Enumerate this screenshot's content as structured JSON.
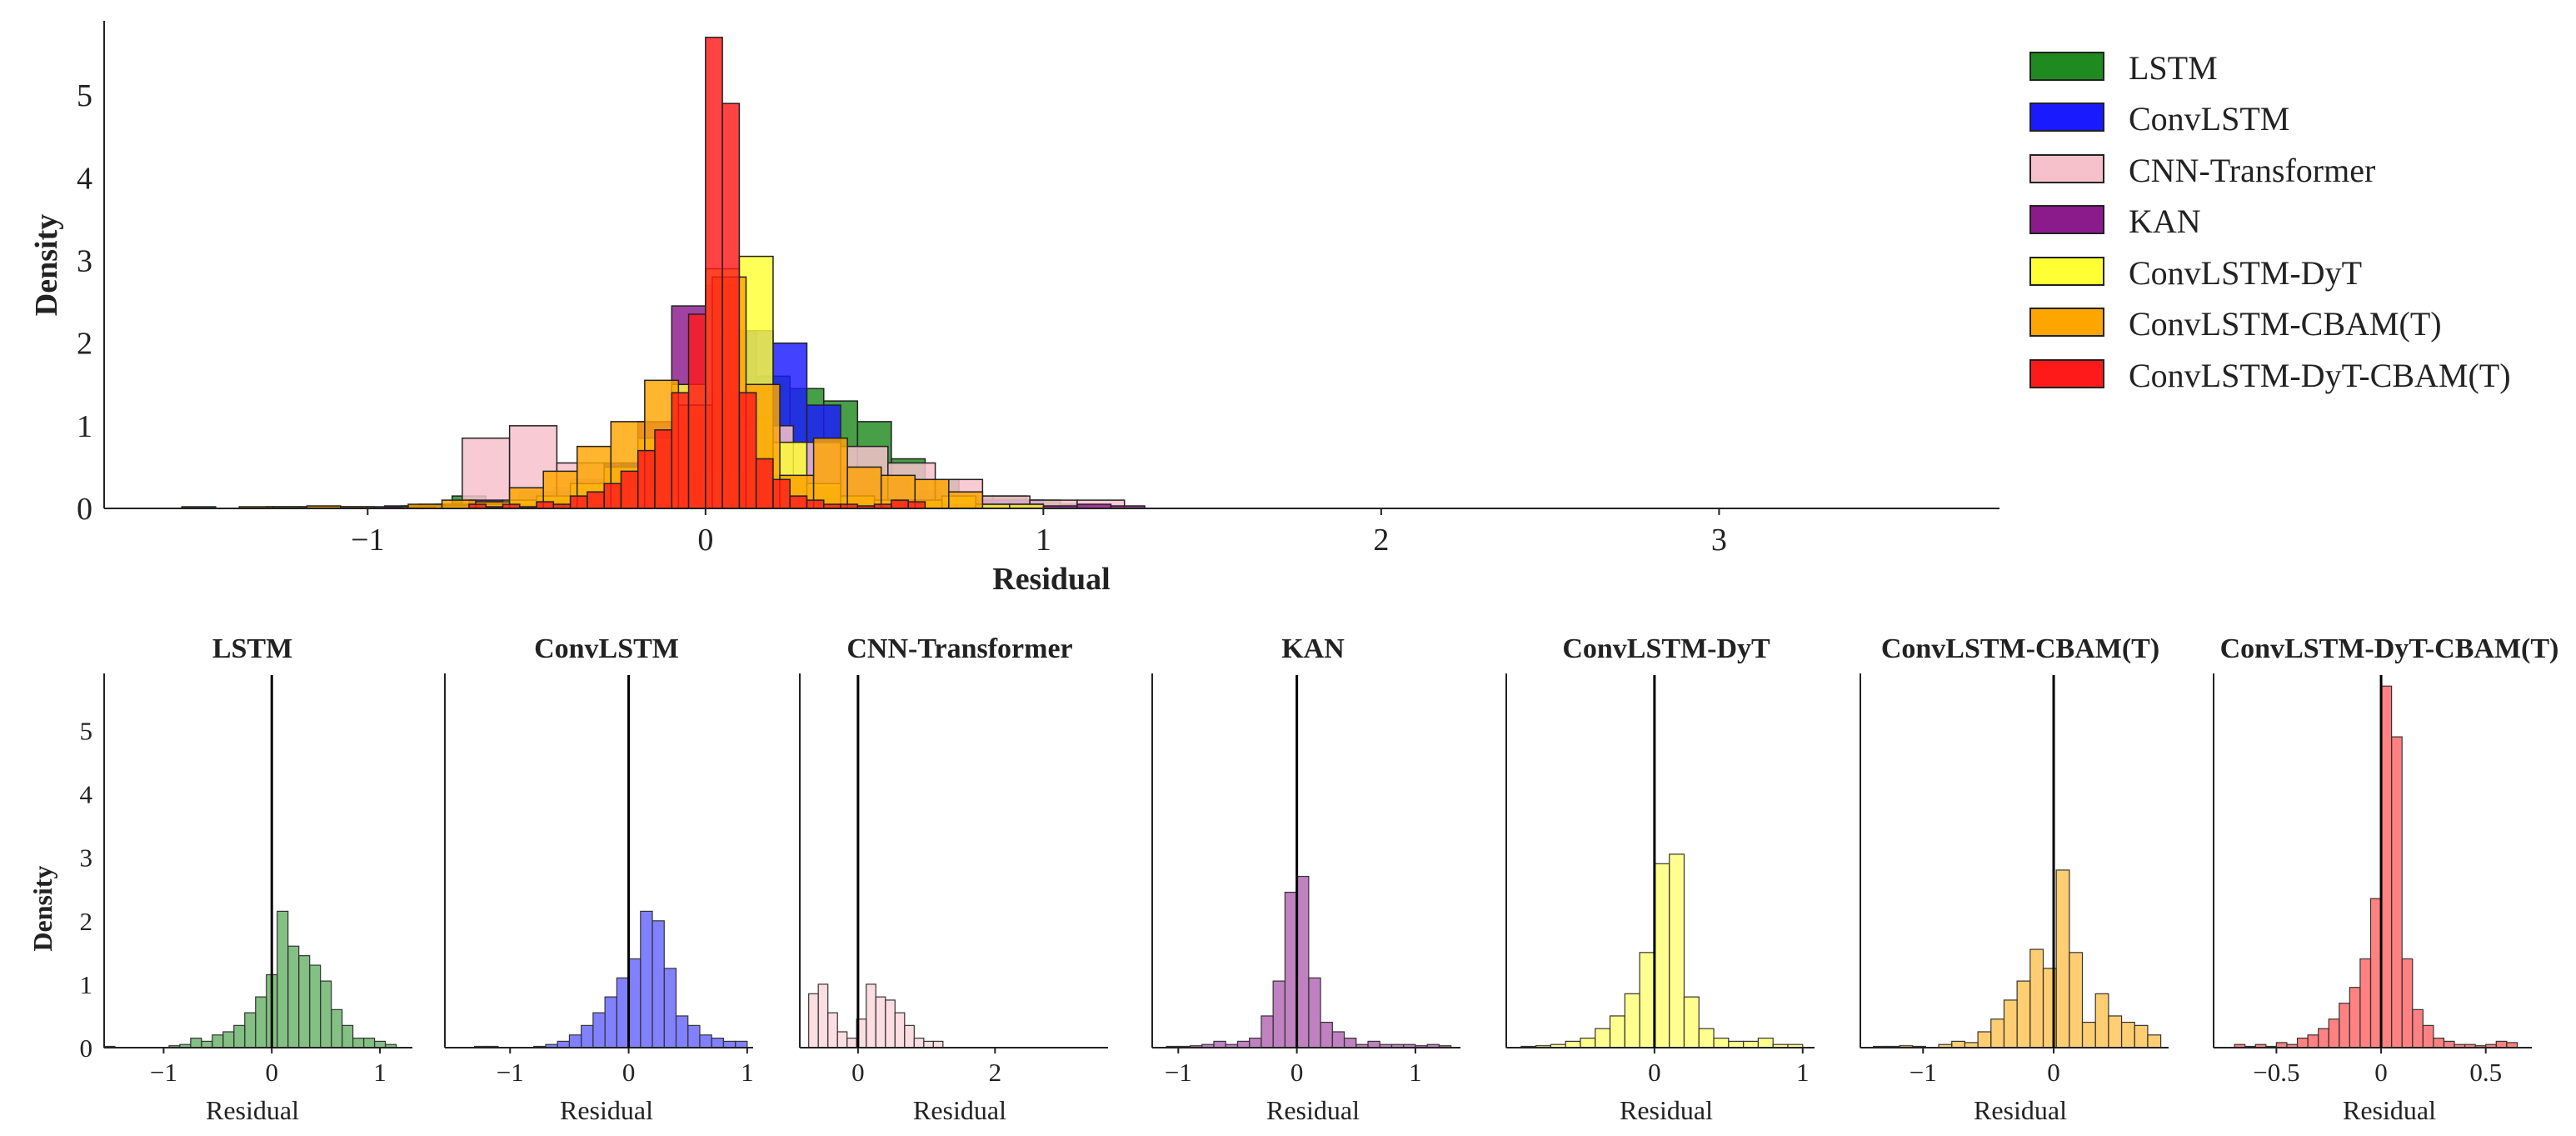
{
  "chart_data": {
    "type": "histogram",
    "colors": {
      "LSTM": "#1f8a1f",
      "ConvLSTM": "#1a1aff",
      "CNN-Transformer": "#f7c1cb",
      "KAN": "#8b1a8b",
      "ConvLSTM-DyT": "#ffff33",
      "ConvLSTM-CBAM(T)": "#ffa500",
      "ConvLSTM-DyT-CBAM(T)": "#ff1a1a"
    },
    "overlay": {
      "xlabel": "Residual",
      "ylabel": "Density",
      "xlim": [
        -1.78,
        3.83
      ],
      "ylim": [
        0,
        5.9
      ],
      "xticks": [
        "−1",
        "0",
        "1",
        "2",
        "3"
      ],
      "xtick_values": [
        -1,
        0,
        1,
        2,
        3
      ],
      "yticks": [
        "0",
        "1",
        "2",
        "3",
        "4",
        "5"
      ],
      "ytick_values": [
        0,
        1,
        2,
        3,
        4,
        5
      ]
    },
    "legend": [
      "LSTM",
      "ConvLSTM",
      "CNN-Transformer",
      "KAN",
      "ConvLSTM-DyT",
      "ConvLSTM-CBAM(T)",
      "ConvLSTM-DyT-CBAM(T)"
    ],
    "panels": [
      {
        "title": "LSTM",
        "series": "LSTM",
        "xlabel": "Residual",
        "ylabel": "Density",
        "xlim": [
          -1.55,
          1.3
        ],
        "ylim": [
          0,
          5.9
        ],
        "xticks": [
          "−1",
          "0",
          "1"
        ],
        "xtick_values": [
          -1,
          0,
          1
        ],
        "yticks": [
          "0",
          "1",
          "2",
          "3",
          "4",
          "5"
        ],
        "ytick_values": [
          0,
          1,
          2,
          3,
          4,
          5
        ],
        "bins": [
          -1.55,
          -1.45,
          -1.35,
          -1.25,
          -1.15,
          -1.05,
          -0.95,
          -0.85,
          -0.75,
          -0.65,
          -0.55,
          -0.45,
          -0.35,
          -0.25,
          -0.15,
          -0.05,
          0.05,
          0.15,
          0.25,
          0.35,
          0.45,
          0.55,
          0.65,
          0.75,
          0.85,
          0.95,
          1.05,
          1.15
        ],
        "values": [
          0.02,
          0,
          0,
          0,
          0,
          0,
          0.03,
          0.05,
          0.15,
          0.1,
          0.2,
          0.25,
          0.35,
          0.55,
          0.8,
          1.15,
          2.15,
          1.6,
          1.45,
          1.3,
          1.05,
          0.6,
          0.35,
          0.15,
          0.15,
          0.1,
          0.05
        ]
      },
      {
        "title": "ConvLSTM",
        "series": "ConvLSTM",
        "xlabel": "Residual",
        "ylabel": "",
        "xlim": [
          -1.55,
          1.05
        ],
        "ylim": [
          0,
          5.9
        ],
        "xticks": [
          "−1",
          "0",
          "1"
        ],
        "xtick_values": [
          -1,
          0,
          1
        ],
        "yticks": [],
        "ytick_values": [],
        "bins": [
          -1.3,
          -1.2,
          -1.1,
          -1.0,
          -0.9,
          -0.8,
          -0.7,
          -0.6,
          -0.5,
          -0.4,
          -0.3,
          -0.2,
          -0.1,
          0.0,
          0.1,
          0.2,
          0.3,
          0.4,
          0.5,
          0.6,
          0.7,
          0.8,
          0.9,
          1.0
        ],
        "values": [
          0.02,
          0.02,
          0,
          0,
          0,
          0.02,
          0.05,
          0.1,
          0.2,
          0.35,
          0.55,
          0.8,
          1.1,
          1.4,
          2.15,
          2.0,
          1.25,
          0.5,
          0.35,
          0.2,
          0.15,
          0.1,
          0.1
        ]
      },
      {
        "title": "CNN-Transformer",
        "series": "CNN-Transformer",
        "xlabel": "Residual",
        "ylabel": "",
        "xlim": [
          -0.85,
          3.65
        ],
        "ylim": [
          0,
          5.9
        ],
        "xticks": [
          "0",
          "2"
        ],
        "xtick_values": [
          0,
          2
        ],
        "yticks": [],
        "ytick_values": [],
        "bins": [
          -0.72,
          -0.58,
          -0.44,
          -0.3,
          -0.16,
          -0.02,
          0.12,
          0.26,
          0.4,
          0.54,
          0.68,
          0.82,
          0.96,
          1.1,
          1.24
        ],
        "values": [
          0.85,
          1.0,
          0.55,
          0.25,
          0.15,
          0.45,
          1.0,
          0.8,
          0.75,
          0.55,
          0.35,
          0.15,
          0.1,
          0.1
        ]
      },
      {
        "title": "KAN",
        "series": "KAN",
        "xlabel": "Residual",
        "ylabel": "",
        "xlim": [
          -1.22,
          1.38
        ],
        "ylim": [
          0,
          5.9
        ],
        "xticks": [
          "−1",
          "0",
          "1"
        ],
        "xtick_values": [
          -1,
          0,
          1
        ],
        "yticks": [],
        "ytick_values": [],
        "bins": [
          -1.1,
          -1.0,
          -0.9,
          -0.8,
          -0.7,
          -0.6,
          -0.5,
          -0.4,
          -0.3,
          -0.2,
          -0.1,
          0.0,
          0.1,
          0.2,
          0.3,
          0.4,
          0.5,
          0.6,
          0.7,
          0.8,
          0.9,
          1.0,
          1.1,
          1.2,
          1.3
        ],
        "values": [
          0.02,
          0.02,
          0.03,
          0.05,
          0.1,
          0.05,
          0.1,
          0.15,
          0.5,
          1.05,
          2.45,
          2.7,
          1.1,
          0.4,
          0.25,
          0.15,
          0.05,
          0.1,
          0.05,
          0.05,
          0.05,
          0.03,
          0.05,
          0.03
        ]
      },
      {
        "title": "ConvLSTM-DyT",
        "series": "ConvLSTM-DyT",
        "xlabel": "Residual",
        "ylabel": "",
        "xlim": [
          -1.0,
          1.08
        ],
        "ylim": [
          0,
          5.9
        ],
        "xticks": [
          "0",
          "1"
        ],
        "xtick_values": [
          0,
          1
        ],
        "yticks": [],
        "ytick_values": [],
        "bins": [
          -0.9,
          -0.8,
          -0.7,
          -0.6,
          -0.5,
          -0.4,
          -0.3,
          -0.2,
          -0.1,
          0.0,
          0.1,
          0.2,
          0.3,
          0.4,
          0.5,
          0.6,
          0.7,
          0.8,
          0.9,
          1.0
        ],
        "values": [
          0.02,
          0.03,
          0.05,
          0.1,
          0.15,
          0.3,
          0.5,
          0.85,
          1.5,
          2.9,
          3.05,
          0.8,
          0.3,
          0.15,
          0.1,
          0.1,
          0.15,
          0.05,
          0.05
        ]
      },
      {
        "title": "ConvLSTM-CBAM(T)",
        "series": "ConvLSTM-CBAM(T)",
        "xlabel": "Residual",
        "ylabel": "",
        "xlim": [
          -1.48,
          0.88
        ],
        "ylim": [
          0,
          5.9
        ],
        "xticks": [
          "−1",
          "0"
        ],
        "xtick_values": [
          -1,
          0
        ],
        "yticks": [],
        "ytick_values": [],
        "bins": [
          -1.38,
          -1.28,
          -1.18,
          -1.08,
          -0.98,
          -0.88,
          -0.78,
          -0.68,
          -0.58,
          -0.48,
          -0.38,
          -0.28,
          -0.18,
          -0.08,
          0.02,
          0.12,
          0.22,
          0.32,
          0.42,
          0.52,
          0.62,
          0.72,
          0.82
        ],
        "values": [
          0.02,
          0.02,
          0.03,
          0.02,
          0,
          0.05,
          0.1,
          0.08,
          0.25,
          0.45,
          0.75,
          1.05,
          1.55,
          1.25,
          2.8,
          1.5,
          0.4,
          0.85,
          0.5,
          0.4,
          0.35,
          0.2
        ]
      },
      {
        "title": "ConvLSTM-DyT-CBAM(T)",
        "series": "ConvLSTM-DyT-CBAM(T)",
        "xlabel": "Residual",
        "ylabel": "",
        "xlim": [
          -0.8,
          0.72
        ],
        "ylim": [
          0,
          5.9
        ],
        "xticks": [
          "−0.5",
          "0",
          "0.5"
        ],
        "xtick_values": [
          -0.5,
          0,
          0.5
        ],
        "yticks": [],
        "ytick_values": [],
        "bins": [
          -0.7,
          -0.65,
          -0.6,
          -0.55,
          -0.5,
          -0.45,
          -0.4,
          -0.35,
          -0.3,
          -0.25,
          -0.2,
          -0.15,
          -0.1,
          -0.05,
          0.0,
          0.05,
          0.1,
          0.15,
          0.2,
          0.25,
          0.3,
          0.35,
          0.4,
          0.45,
          0.5,
          0.55,
          0.6,
          0.65
        ],
        "values": [
          0.05,
          0.02,
          0.05,
          0.02,
          0.08,
          0.05,
          0.15,
          0.2,
          0.3,
          0.45,
          0.7,
          0.95,
          1.4,
          2.35,
          5.7,
          4.9,
          1.4,
          0.6,
          0.35,
          0.15,
          0.1,
          0.05,
          0.05,
          0.03,
          0.05,
          0.1,
          0.08
        ]
      }
    ]
  }
}
